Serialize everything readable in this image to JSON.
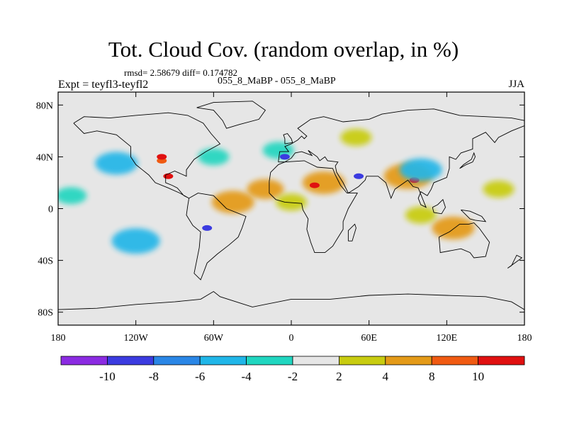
{
  "header": {
    "title": "Tot. Cloud Cov. (random overlap, in %)",
    "stats": "rmsd= 2.58679 diff= 0.174782",
    "subtitle": "055_8_MaBP - 055_8_MaBP",
    "experiment": "Expt = teyfl3-teyfl2",
    "season": "JJA"
  },
  "chart_data": {
    "type": "heatmap",
    "title": "Tot. Cloud Cov. (random overlap, in %)",
    "xlabel": "",
    "ylabel": "",
    "xlim": [
      -180,
      180
    ],
    "ylim": [
      -90,
      90
    ],
    "x_ticks": [
      {
        "value": -180,
        "label": "180"
      },
      {
        "value": -120,
        "label": "120W"
      },
      {
        "value": -60,
        "label": "60W"
      },
      {
        "value": 0,
        "label": "0"
      },
      {
        "value": 60,
        "label": "60E"
      },
      {
        "value": 120,
        "label": "120E"
      },
      {
        "value": 180,
        "label": "180"
      }
    ],
    "y_ticks": [
      {
        "value": 80,
        "label": "80N"
      },
      {
        "value": 40,
        "label": "40N"
      },
      {
        "value": 0,
        "label": "0"
      },
      {
        "value": -40,
        "label": "40S"
      },
      {
        "value": -80,
        "label": "80S"
      }
    ],
    "colorbar": {
      "levels": [
        -10,
        -8,
        -6,
        -4,
        -2,
        2,
        4,
        8,
        10
      ],
      "colors": [
        "#8b2be2",
        "#3b3be0",
        "#2a86e6",
        "#20b6e8",
        "#20d6c0",
        "#e6e6e6",
        "#c8cc10",
        "#e49a18",
        "#f05a12",
        "#e01010"
      ]
    },
    "anomalies": [
      {
        "lon": -20,
        "lat": 15,
        "value": 4
      },
      {
        "lon": 25,
        "lat": 20,
        "value": 5
      },
      {
        "lon": -45,
        "lat": 5,
        "value": 5
      },
      {
        "lon": 90,
        "lat": 25,
        "value": 6
      },
      {
        "lon": 125,
        "lat": -15,
        "value": 5
      },
      {
        "lon": 100,
        "lat": -5,
        "value": 3
      },
      {
        "lon": 0,
        "lat": 5,
        "value": 3
      },
      {
        "lon": 160,
        "lat": 15,
        "value": 3
      },
      {
        "lon": -120,
        "lat": -25,
        "value": -6
      },
      {
        "lon": -135,
        "lat": 35,
        "value": -5
      },
      {
        "lon": -60,
        "lat": 40,
        "value": -3
      },
      {
        "lon": -170,
        "lat": 10,
        "value": -3
      },
      {
        "lon": -10,
        "lat": 45,
        "value": -3
      },
      {
        "lon": 50,
        "lat": 55,
        "value": 3
      },
      {
        "lon": -100,
        "lat": 37,
        "value": 8
      },
      {
        "lon": -95,
        "lat": 25,
        "value": 10
      },
      {
        "lon": 18,
        "lat": 18,
        "value": 10
      },
      {
        "lon": 95,
        "lat": 22,
        "value": 10
      },
      {
        "lon": -100,
        "lat": 40,
        "value": 12
      },
      {
        "lon": -65,
        "lat": -15,
        "value": -9
      },
      {
        "lon": 52,
        "lat": 25,
        "value": -9
      },
      {
        "lon": -5,
        "lat": 40,
        "value": -9
      },
      {
        "lon": 100,
        "lat": 30,
        "value": -5
      }
    ]
  }
}
